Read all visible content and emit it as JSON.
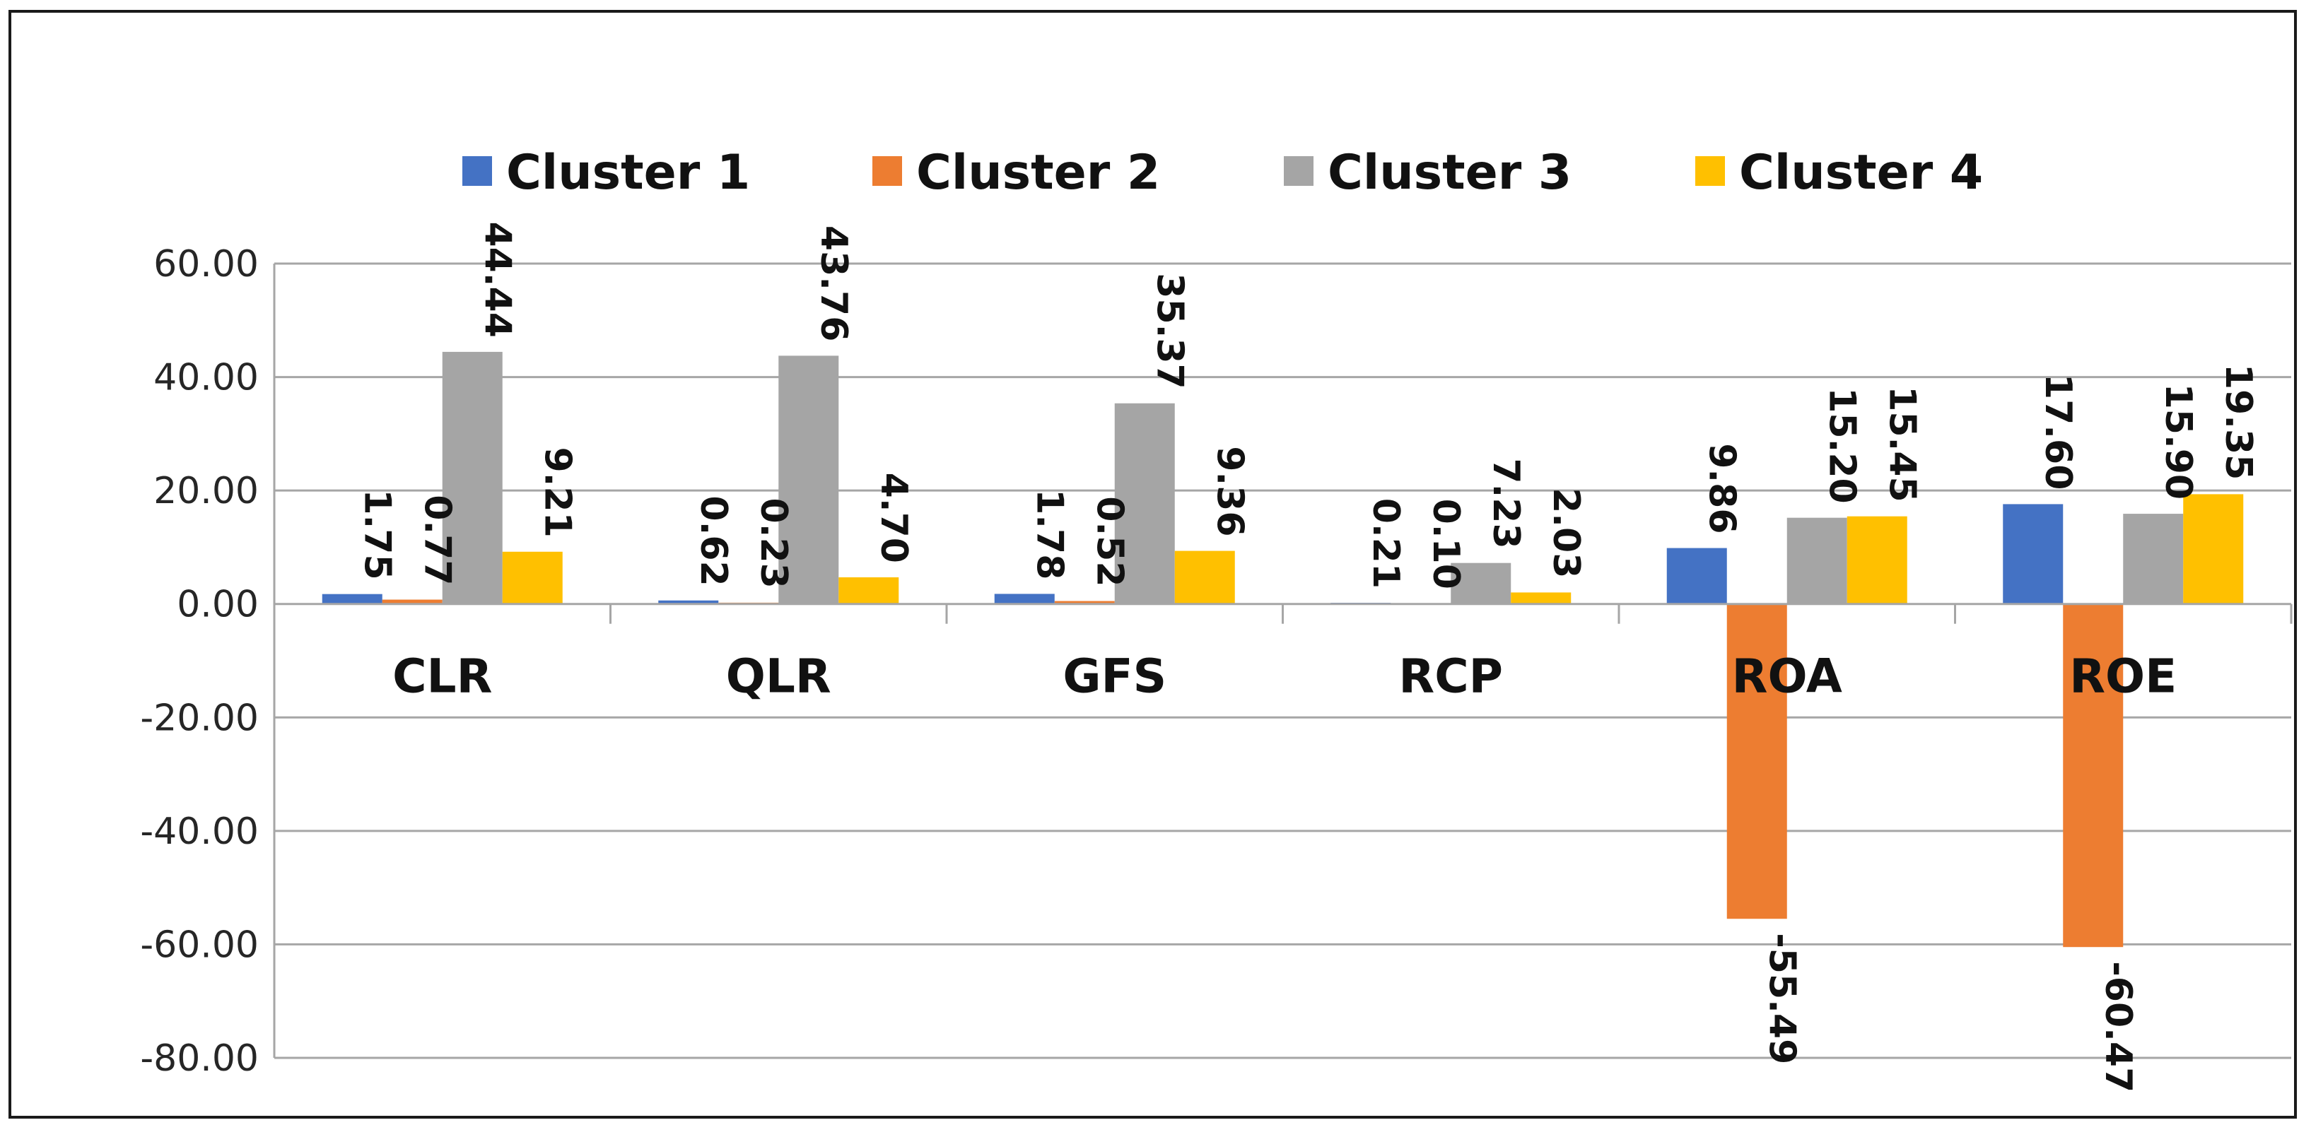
{
  "chart_data": {
    "type": "bar",
    "title": "",
    "xlabel": "",
    "ylabel": "",
    "categories": [
      "CLR",
      "QLR",
      "GFS",
      "RCP",
      "ROA",
      "ROE"
    ],
    "series": [
      {
        "name": "Cluster 1",
        "color": "#4472C4",
        "values": [
          1.75,
          0.62,
          1.78,
          0.21,
          9.86,
          17.6
        ],
        "labels": [
          "1.75",
          "0.62",
          "1.78",
          "0.21",
          "9.86",
          "17.60"
        ]
      },
      {
        "name": "Cluster 2",
        "color": "#ED7D31",
        "values": [
          0.77,
          0.23,
          0.52,
          0.1,
          -55.49,
          -60.47
        ],
        "labels": [
          "0.77",
          "0.23",
          "0.52",
          "0.10",
          "-55.49",
          "-60.47"
        ]
      },
      {
        "name": "Cluster 3",
        "color": "#A5A5A5",
        "values": [
          44.44,
          43.76,
          35.37,
          7.23,
          15.2,
          15.9
        ],
        "labels": [
          "44.44",
          "43.76",
          "35.37",
          "7.23",
          "15.20",
          "15.90"
        ]
      },
      {
        "name": "Cluster 4",
        "color": "#FFC000",
        "values": [
          9.21,
          4.7,
          9.36,
          2.03,
          15.45,
          19.35
        ],
        "labels": [
          "9.21",
          "4.70",
          "9.36",
          "2.03",
          "15.45",
          "19.35"
        ]
      }
    ],
    "ylim": [
      -80,
      60
    ],
    "yticks": [
      60,
      40,
      20,
      0,
      -20,
      -40,
      -60,
      -80
    ],
    "ytick_labels": [
      "60.00",
      "40.00",
      "20.00",
      "0.00",
      "-20.00",
      "-40.00",
      "-60.00",
      "-80.00"
    ],
    "grid": true,
    "legend": "top-center",
    "data_label_rotation": "90deg"
  }
}
